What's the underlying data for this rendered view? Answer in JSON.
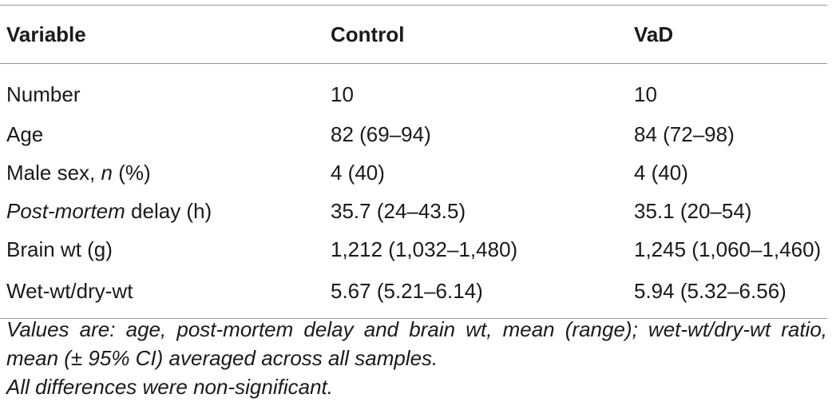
{
  "table": {
    "headers": [
      "Variable",
      "Control",
      "VaD"
    ],
    "rows": [
      {
        "label_pre": "Number",
        "label_em": "",
        "label_post": "",
        "control": "10",
        "vad": "10"
      },
      {
        "label_pre": "Age",
        "label_em": "",
        "label_post": "",
        "control": "82 (69–94)",
        "vad": "84 (72–98)"
      },
      {
        "label_pre": "Male sex, ",
        "label_em": "n",
        "label_post": " (%)",
        "control": "4 (40)",
        "vad": "4 (40)"
      },
      {
        "label_pre": "",
        "label_em": "Post-mortem",
        "label_post": " delay (h)",
        "control": "35.7 (24–43.5)",
        "vad": "35.1 (20–54)"
      },
      {
        "label_pre": "Brain wt (g)",
        "label_em": "",
        "label_post": "",
        "control": "1,212 (1,032–1,480)",
        "vad": "1,245 (1,060–1,460)"
      },
      {
        "label_pre": "Wet-wt/dry-wt",
        "label_em": "",
        "label_post": "",
        "control": "5.67 (5.21–6.14)",
        "vad": "5.94 (5.32–6.56)"
      }
    ]
  },
  "notes": [
    "Values are: age, post-mortem delay and brain wt, mean (range); wet-wt/dry-wt ratio, mean (± 95% CI) averaged across all samples.",
    "All differences were non-significant."
  ]
}
